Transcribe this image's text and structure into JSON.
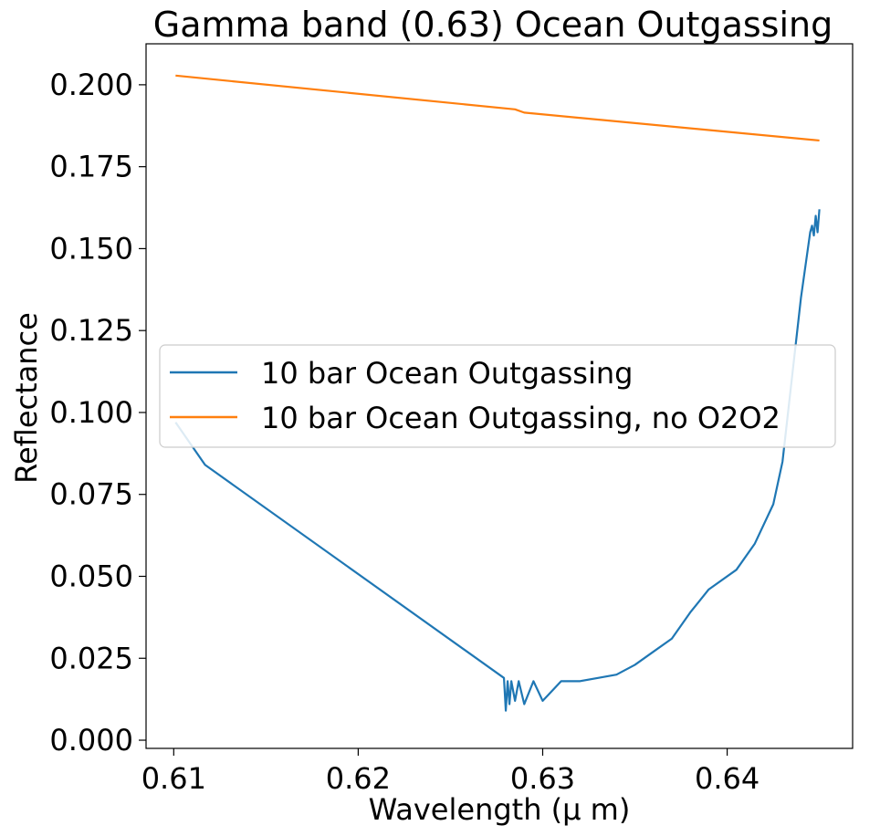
{
  "chart_data": {
    "type": "line",
    "title": "Gamma band (0.63) Ocean Outgassing",
    "xlabel": "Wavelength (μ m)",
    "ylabel": "Reflectance",
    "xlim": [
      0.6085,
      0.6468
    ],
    "ylim": [
      -0.0025,
      0.2125
    ],
    "x_ticks": [
      0.61,
      0.62,
      0.63,
      0.64
    ],
    "x_tick_labels": [
      "0.61",
      "0.62",
      "0.63",
      "0.64"
    ],
    "y_ticks": [
      0.0,
      0.025,
      0.05,
      0.075,
      0.1,
      0.125,
      0.15,
      0.175,
      0.2
    ],
    "y_tick_labels": [
      "0.000",
      "0.025",
      "0.050",
      "0.075",
      "0.100",
      "0.125",
      "0.150",
      "0.175",
      "0.200"
    ],
    "grid": false,
    "legend_position": "center-left",
    "series": [
      {
        "name": "10 bar Ocean Outgassing",
        "color": "#1f77b4",
        "x": [
          0.6101,
          0.6117,
          0.6279,
          0.628,
          0.6281,
          0.6282,
          0.6283,
          0.6285,
          0.6287,
          0.629,
          0.6295,
          0.63,
          0.631,
          0.632,
          0.633,
          0.634,
          0.635,
          0.636,
          0.637,
          0.638,
          0.639,
          0.6405,
          0.6415,
          0.6425,
          0.643,
          0.6437,
          0.644,
          0.6445,
          0.6446,
          0.6447,
          0.6448,
          0.6449,
          0.645
        ],
        "y": [
          0.097,
          0.084,
          0.019,
          0.009,
          0.018,
          0.011,
          0.018,
          0.012,
          0.018,
          0.011,
          0.018,
          0.012,
          0.018,
          0.018,
          0.019,
          0.02,
          0.023,
          0.027,
          0.031,
          0.039,
          0.046,
          0.052,
          0.06,
          0.072,
          0.085,
          0.12,
          0.135,
          0.155,
          0.157,
          0.154,
          0.16,
          0.155,
          0.162
        ]
      },
      {
        "name": "10 bar Ocean Outgassing, no O2O2",
        "color": "#ff7f0e",
        "x": [
          0.6101,
          0.6285,
          0.629,
          0.645
        ],
        "y": [
          0.2028,
          0.1925,
          0.1915,
          0.183
        ]
      }
    ]
  }
}
